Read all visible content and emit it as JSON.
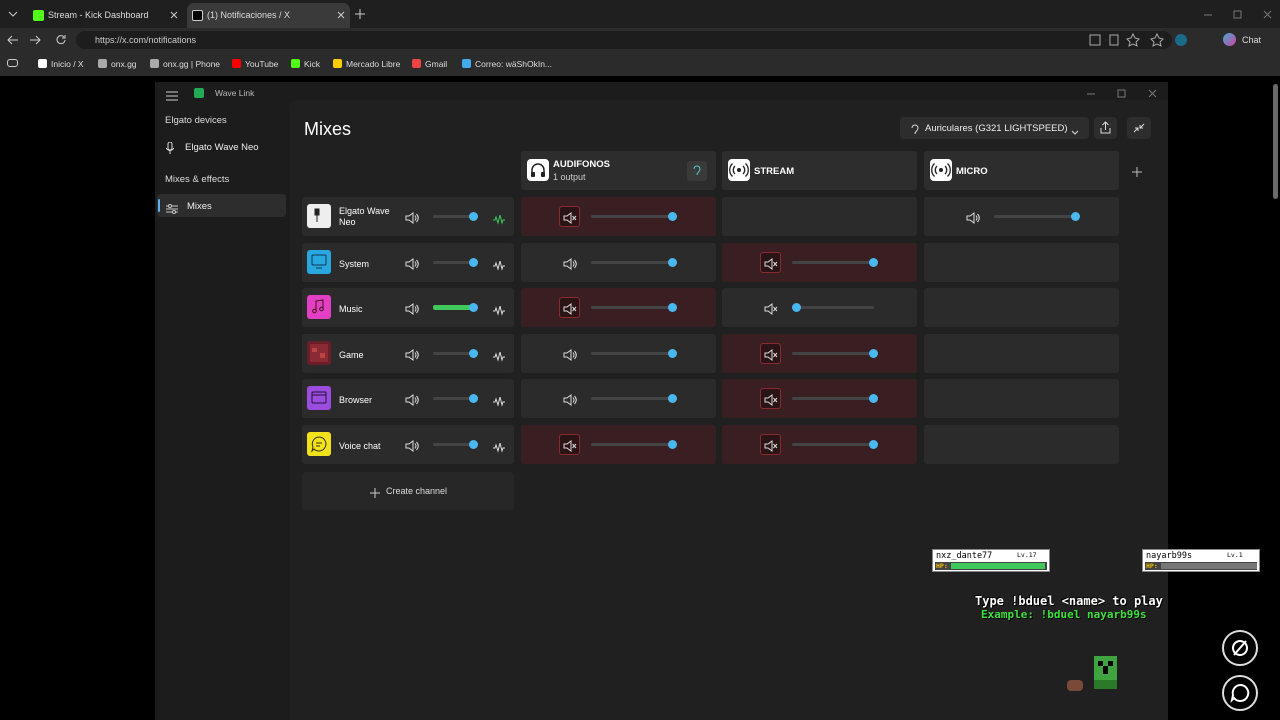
{
  "browser": {
    "tabs": [
      "Stream - Kick Dashboard",
      "(1) Notificaciones / X"
    ],
    "url": "https://x.com/notifications",
    "chat": "Chat",
    "bookmarks": [
      "Inicio / X",
      "onx.gg",
      "onx.gg | Phone",
      "YouTube",
      "Kick",
      "Mercado Libre",
      "Gmail",
      "Correo: wäShOkIn..."
    ]
  },
  "app": {
    "title": "Wave Link",
    "sidebar": {
      "devices_heading": "Elgato devices",
      "device": "Elgato Wave Neo",
      "mixes_heading": "Mixes & effects",
      "mixes_item": "Mixes"
    },
    "heading": "Mixes",
    "output_device": "Auriculares (G321 LIGHTSPEED)",
    "mixes": [
      {
        "name": "AUDIFONOS",
        "subtitle": "1 output"
      },
      {
        "name": "STREAM"
      },
      {
        "name": "MICRO"
      }
    ],
    "channels": [
      "Elgato Wave Neo",
      "System",
      "Music",
      "Game",
      "Browser",
      "Voice chat"
    ],
    "create_channel": "Create channel"
  },
  "overlay": {
    "players": [
      {
        "name": "nxz_dante77",
        "level": "Lv.17",
        "hp": "HP:"
      },
      {
        "name": "nayarb99s",
        "level": "Lv.1",
        "hp": "HP:"
      }
    ],
    "instruction": "Type !bduel <name> to play",
    "example": "Example: !bduel nayarb99s"
  }
}
